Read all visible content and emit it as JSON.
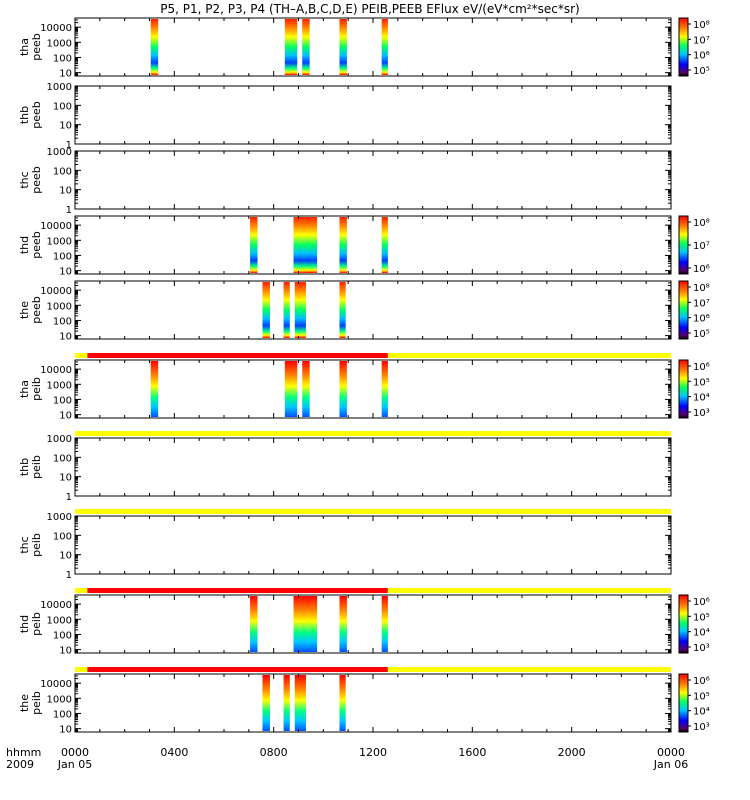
{
  "title": "P5, P1, P2, P3, P4 (TH–A,B,C,D,E) PEIB,PEEB EFlux eV/(eV*cm²*sec*sr)",
  "footer": {
    "hhmm_label": "hhmm",
    "year_label": "2009",
    "start_date": "Jan 05",
    "end_date": "Jan 06"
  },
  "colors": {
    "status_good": "#ffff00",
    "status_bad": "#ff0000"
  },
  "chart_data": {
    "type": "heatmap",
    "x_axis": {
      "unit": "hhmm",
      "range_hours": [
        0,
        24
      ],
      "ticks": [
        "0000",
        "0400",
        "0800",
        "1200",
        "1600",
        "2000",
        "0000"
      ]
    },
    "panels": [
      {
        "id": "tha-peeb",
        "label": [
          "tha",
          "peeb"
        ],
        "yticks": [
          "10000",
          "1000",
          "100",
          "10"
        ],
        "ymin": 6,
        "ymax": 40000,
        "intervals": [
          [
            3.05,
            3.35
          ],
          [
            8.45,
            8.95
          ],
          [
            9.15,
            9.45
          ],
          [
            10.65,
            10.95
          ],
          [
            12.35,
            12.6
          ]
        ],
        "colorbar": {
          "labels": [
            "10⁸",
            "10⁷",
            "10⁶",
            "10⁵"
          ]
        }
      },
      {
        "id": "thb-peeb",
        "label": [
          "thb",
          "peeb"
        ],
        "yticks": [
          "1000",
          "100",
          "10",
          "1"
        ],
        "ymin": 1,
        "ymax": 1000,
        "intervals": [],
        "colorbar": null
      },
      {
        "id": "thc-peeb",
        "label": [
          "thc",
          "peeb"
        ],
        "yticks": [
          "1000",
          "100",
          "10",
          "1"
        ],
        "ymin": 1,
        "ymax": 1000,
        "intervals": [],
        "colorbar": null
      },
      {
        "id": "thd-peeb",
        "label": [
          "thd",
          "peeb"
        ],
        "yticks": [
          "10000",
          "1000",
          "100",
          "10"
        ],
        "ymin": 6,
        "ymax": 40000,
        "intervals": [
          [
            7.05,
            7.35
          ],
          [
            8.8,
            9.75
          ],
          [
            10.65,
            10.95
          ],
          [
            12.35,
            12.6
          ]
        ],
        "colorbar": {
          "labels": [
            "10⁸",
            "10⁷",
            "10⁶"
          ]
        }
      },
      {
        "id": "the-peeb",
        "label": [
          "the",
          "peeb"
        ],
        "yticks": [
          "10000",
          "1000",
          "100",
          "10"
        ],
        "ymin": 6,
        "ymax": 40000,
        "intervals": [
          [
            7.55,
            7.85
          ],
          [
            8.4,
            8.65
          ],
          [
            8.85,
            9.3
          ],
          [
            10.65,
            10.9
          ]
        ],
        "colorbar": {
          "labels": [
            "10⁸",
            "10⁷",
            "10⁶",
            "10⁵"
          ]
        }
      },
      {
        "id": "tha-peib",
        "label": [
          "tha",
          "peib"
        ],
        "yticks": [
          "10000",
          "1000",
          "100",
          "10"
        ],
        "ymin": 6,
        "ymax": 40000,
        "intervals": [
          [
            3.05,
            3.35
          ],
          [
            8.45,
            8.95
          ],
          [
            9.15,
            9.45
          ],
          [
            10.65,
            10.95
          ],
          [
            12.35,
            12.6
          ]
        ],
        "colorbar": {
          "labels": [
            "10⁶",
            "10⁵",
            "10⁴",
            "10³"
          ]
        },
        "status_bar": [
          {
            "from": 0,
            "to": 0.5,
            "state": "good"
          },
          {
            "from": 0.5,
            "to": 12.6,
            "state": "bad"
          },
          {
            "from": 12.6,
            "to": 24,
            "state": "good"
          }
        ]
      },
      {
        "id": "thb-peib",
        "label": [
          "thb",
          "peib"
        ],
        "yticks": [
          "1000",
          "100",
          "10",
          "1"
        ],
        "ymin": 1,
        "ymax": 1000,
        "intervals": [],
        "colorbar": null,
        "status_bar": [
          {
            "from": 0,
            "to": 24,
            "state": "good"
          }
        ]
      },
      {
        "id": "thc-peib",
        "label": [
          "thc",
          "peib"
        ],
        "yticks": [
          "1000",
          "100",
          "10",
          "1"
        ],
        "ymin": 1,
        "ymax": 1000,
        "intervals": [],
        "colorbar": null,
        "status_bar": [
          {
            "from": 0,
            "to": 24,
            "state": "good"
          }
        ]
      },
      {
        "id": "thd-peib",
        "label": [
          "thd",
          "peib"
        ],
        "yticks": [
          "10000",
          "1000",
          "100",
          "10"
        ],
        "ymin": 6,
        "ymax": 40000,
        "intervals": [
          [
            7.05,
            7.35
          ],
          [
            8.8,
            9.75
          ],
          [
            10.65,
            10.95
          ],
          [
            12.35,
            12.6
          ]
        ],
        "colorbar": {
          "labels": [
            "10⁶",
            "10⁵",
            "10⁴",
            "10³"
          ]
        },
        "status_bar": [
          {
            "from": 0,
            "to": 0.5,
            "state": "good"
          },
          {
            "from": 0.5,
            "to": 12.6,
            "state": "bad"
          },
          {
            "from": 12.6,
            "to": 24,
            "state": "good"
          }
        ]
      },
      {
        "id": "the-peib",
        "label": [
          "the",
          "peib"
        ],
        "yticks": [
          "10000",
          "1000",
          "100",
          "10"
        ],
        "ymin": 6,
        "ymax": 40000,
        "intervals": [
          [
            7.55,
            7.85
          ],
          [
            8.4,
            8.65
          ],
          [
            8.85,
            9.3
          ],
          [
            10.65,
            10.9
          ]
        ],
        "colorbar": {
          "labels": [
            "10⁶",
            "10⁵",
            "10⁴",
            "10³"
          ]
        },
        "status_bar": [
          {
            "from": 0,
            "to": 0.5,
            "state": "good"
          },
          {
            "from": 0.5,
            "to": 12.6,
            "state": "bad"
          },
          {
            "from": 12.6,
            "to": 24,
            "state": "good"
          }
        ]
      }
    ]
  }
}
